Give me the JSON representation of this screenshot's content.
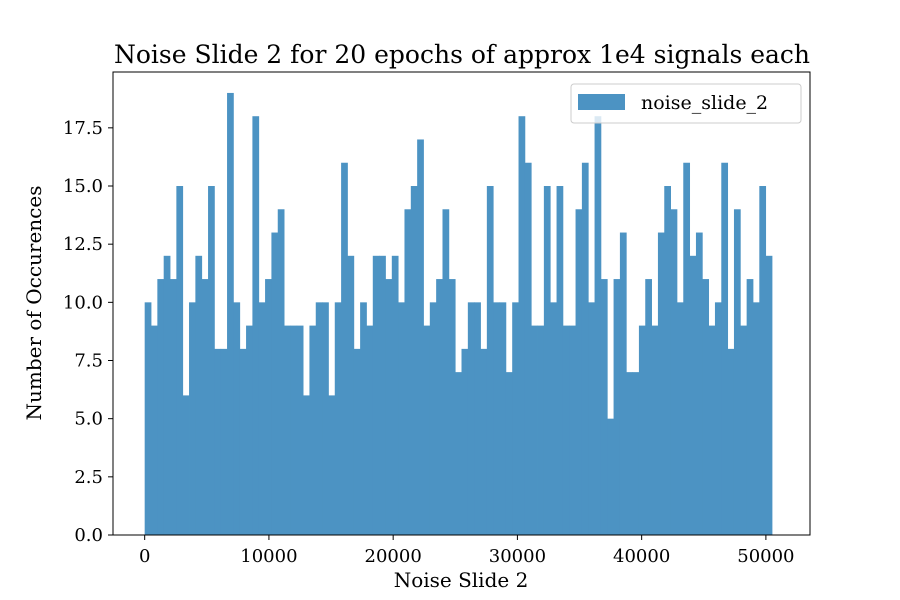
{
  "chart_data": {
    "type": "bar",
    "title": "Noise Slide 2 for 20 epochs of approx 1e4 signals each",
    "xlabel": "Noise Slide 2",
    "ylabel": "Number of Occurences",
    "xlim": [
      -2550,
      53550
    ],
    "ylim": [
      0,
      19.9
    ],
    "xticks": [
      0,
      10000,
      20000,
      30000,
      40000,
      50000
    ],
    "xtick_labels": [
      "0",
      "10000",
      "20000",
      "30000",
      "40000",
      "50000"
    ],
    "yticks": [
      0,
      2.5,
      5,
      7.5,
      10,
      12.5,
      15,
      17.5
    ],
    "ytick_labels": [
      "0.0",
      "2.5",
      "5.0",
      "7.5",
      "10.0",
      "12.5",
      "15.0",
      "17.5"
    ],
    "bin_start": 0,
    "bin_width": 510,
    "legend": {
      "position": "top-right",
      "label": "noise_slide_2"
    },
    "bar_color": "#4c93c3",
    "series": [
      {
        "name": "noise_slide_2",
        "values": [
          10,
          9,
          11,
          12,
          11,
          15,
          6,
          10,
          12,
          11,
          15,
          8,
          8,
          19,
          10,
          8,
          9,
          18,
          10,
          11,
          13,
          14,
          9,
          9,
          9,
          6,
          9,
          10,
          10,
          6,
          10,
          16,
          12,
          8,
          10,
          9,
          12,
          12,
          11,
          12,
          10,
          14,
          15,
          17,
          9,
          10,
          11,
          14,
          11,
          7,
          8,
          10,
          10,
          8,
          15,
          10,
          10,
          7,
          10,
          18,
          16,
          9,
          9,
          15,
          10,
          15,
          9,
          9,
          14,
          16,
          10,
          18,
          11,
          5,
          11,
          13,
          7,
          7,
          9,
          11,
          9,
          13,
          15,
          14,
          10,
          16,
          12,
          13,
          11,
          9,
          10,
          16,
          8,
          14,
          9,
          11,
          10,
          15,
          12
        ]
      }
    ]
  }
}
